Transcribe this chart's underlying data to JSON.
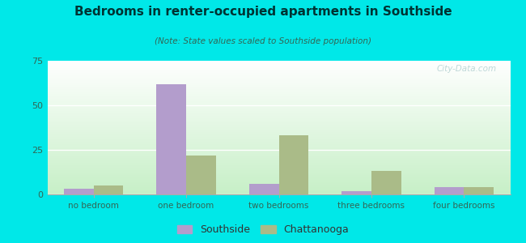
{
  "title": "Bedrooms in renter-occupied apartments in Southside",
  "subtitle": "(Note: State values scaled to Southside population)",
  "categories": [
    "no bedroom",
    "one bedroom",
    "two bedrooms",
    "three bedrooms",
    "four bedrooms"
  ],
  "southside_values": [
    3,
    62,
    6,
    2,
    4
  ],
  "chattanooga_values": [
    5,
    22,
    33,
    13,
    4
  ],
  "southside_color": "#b39dcc",
  "chattanooga_color": "#aabb88",
  "background_outer": "#00e8e8",
  "grad_top": "#ffffff",
  "grad_bottom": "#c8eec8",
  "ylim": [
    0,
    75
  ],
  "yticks": [
    0,
    25,
    50,
    75
  ],
  "bar_width": 0.32,
  "watermark": "City-Data.com",
  "title_color": "#003333",
  "subtitle_color": "#336655",
  "tick_label_color": "#336655",
  "grid_color": "#ddeecc"
}
